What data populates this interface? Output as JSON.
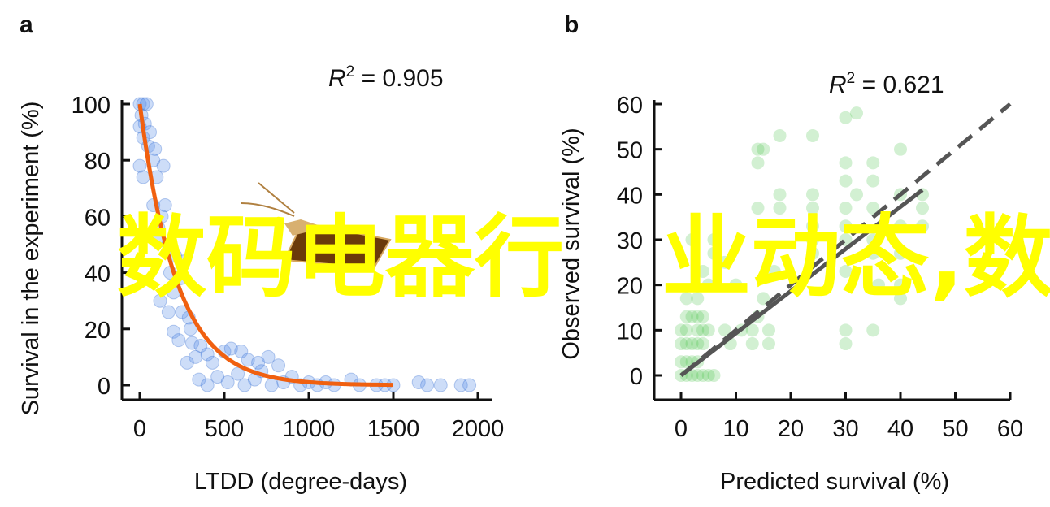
{
  "overlay_text": "数码电器行业动态,数",
  "chart_data": [
    {
      "panel": "a",
      "type": "scatter",
      "xlabel": "LTDD (degree-days)",
      "ylabel": "Survival in the experiment (%)",
      "xlim": [
        0,
        2000
      ],
      "ylim": [
        0,
        100
      ],
      "xticks": [
        "0",
        "500",
        "1000",
        "1500",
        "2000"
      ],
      "yticks": [
        "0",
        "20",
        "40",
        "60",
        "80",
        "100"
      ],
      "annotation": {
        "prefix": "R",
        "sup": "2",
        "text": " = 0.905"
      },
      "point_color": "#5b8fe8",
      "fit_color": "#f06010",
      "fit": {
        "model": "exponential",
        "a": 100,
        "k": 220,
        "xmax": 1500
      },
      "points": [
        [
          0,
          100
        ],
        [
          20,
          100
        ],
        [
          40,
          100
        ],
        [
          10,
          96
        ],
        [
          30,
          93
        ],
        [
          0,
          92
        ],
        [
          20,
          88
        ],
        [
          60,
          90
        ],
        [
          50,
          85
        ],
        [
          90,
          84
        ],
        [
          80,
          80
        ],
        [
          0,
          78
        ],
        [
          140,
          78
        ],
        [
          20,
          74
        ],
        [
          100,
          74
        ],
        [
          80,
          64
        ],
        [
          150,
          64
        ],
        [
          130,
          60
        ],
        [
          110,
          56
        ],
        [
          100,
          52
        ],
        [
          170,
          50
        ],
        [
          210,
          46
        ],
        [
          260,
          44
        ],
        [
          180,
          40
        ],
        [
          240,
          38
        ],
        [
          200,
          33
        ],
        [
          120,
          30
        ],
        [
          170,
          26
        ],
        [
          250,
          26
        ],
        [
          290,
          24
        ],
        [
          300,
          20
        ],
        [
          200,
          19
        ],
        [
          230,
          16
        ],
        [
          310,
          15
        ],
        [
          360,
          14
        ],
        [
          330,
          10
        ],
        [
          280,
          8
        ],
        [
          400,
          11
        ],
        [
          430,
          8
        ],
        [
          500,
          12
        ],
        [
          540,
          13
        ],
        [
          600,
          12
        ],
        [
          640,
          9
        ],
        [
          700,
          8
        ],
        [
          760,
          10
        ],
        [
          820,
          7
        ],
        [
          350,
          2
        ],
        [
          400,
          0
        ],
        [
          460,
          3
        ],
        [
          520,
          1
        ],
        [
          580,
          4
        ],
        [
          620,
          0
        ],
        [
          680,
          2
        ],
        [
          720,
          5
        ],
        [
          780,
          0
        ],
        [
          850,
          1
        ],
        [
          900,
          3
        ],
        [
          950,
          0
        ],
        [
          1000,
          1
        ],
        [
          1050,
          0
        ],
        [
          1100,
          1
        ],
        [
          1150,
          0
        ],
        [
          1250,
          2
        ],
        [
          1300,
          0
        ],
        [
          1400,
          0
        ],
        [
          1450,
          0
        ],
        [
          1500,
          0
        ],
        [
          1650,
          1
        ],
        [
          1700,
          0
        ],
        [
          1780,
          0
        ],
        [
          1900,
          0
        ],
        [
          1950,
          0
        ]
      ]
    },
    {
      "panel": "b",
      "type": "scatter",
      "xlabel": "Predicted survival (%)",
      "ylabel": "Observed survival (%)",
      "xlim": [
        0,
        60
      ],
      "ylim": [
        0,
        60
      ],
      "xticks": [
        "0",
        "10",
        "20",
        "30",
        "40",
        "50",
        "60"
      ],
      "yticks": [
        "0",
        "10",
        "20",
        "30",
        "40",
        "50",
        "60"
      ],
      "annotation": {
        "prefix": "R",
        "sup": "2",
        "text": " = 0.621"
      },
      "point_color": "#33bb33",
      "fit_color": "#555555",
      "fit": {
        "model": "linear",
        "from": [
          0,
          0
        ],
        "to": [
          44,
          41
        ]
      },
      "reference_line": {
        "from": [
          0,
          0
        ],
        "to": [
          60,
          60
        ],
        "style": "dashed"
      },
      "points": [
        [
          0,
          0
        ],
        [
          1,
          0
        ],
        [
          2,
          0
        ],
        [
          3,
          0
        ],
        [
          4,
          0
        ],
        [
          5,
          0
        ],
        [
          6,
          0
        ],
        [
          0,
          3
        ],
        [
          1,
          3
        ],
        [
          2,
          3
        ],
        [
          3,
          3
        ],
        [
          0,
          7
        ],
        [
          1,
          7
        ],
        [
          2,
          7
        ],
        [
          3,
          7
        ],
        [
          4,
          7
        ],
        [
          0,
          10
        ],
        [
          1,
          10
        ],
        [
          3,
          10
        ],
        [
          4,
          10
        ],
        [
          5,
          10
        ],
        [
          1,
          13
        ],
        [
          2,
          13
        ],
        [
          3,
          13
        ],
        [
          4,
          13
        ],
        [
          1,
          17
        ],
        [
          3,
          17
        ],
        [
          5,
          20
        ],
        [
          4,
          23
        ],
        [
          6,
          27
        ],
        [
          2,
          30
        ],
        [
          6,
          30
        ],
        [
          8,
          10
        ],
        [
          9,
          7
        ],
        [
          8,
          25
        ],
        [
          10,
          20
        ],
        [
          11,
          10
        ],
        [
          13,
          10
        ],
        [
          14,
          13
        ],
        [
          15,
          17
        ],
        [
          13,
          7
        ],
        [
          16,
          7
        ],
        [
          16,
          10
        ],
        [
          17,
          23
        ],
        [
          14,
          47
        ],
        [
          15,
          50
        ],
        [
          14,
          50
        ],
        [
          18,
          53
        ],
        [
          18,
          40
        ],
        [
          14,
          37
        ],
        [
          18,
          37
        ],
        [
          24,
          53
        ],
        [
          24,
          40
        ],
        [
          24,
          37
        ],
        [
          24,
          33
        ],
        [
          24,
          30
        ],
        [
          24,
          27
        ],
        [
          30,
          57
        ],
        [
          32,
          58
        ],
        [
          30,
          47
        ],
        [
          30,
          43
        ],
        [
          32,
          40
        ],
        [
          30,
          37
        ],
        [
          30,
          33
        ],
        [
          30,
          30
        ],
        [
          30,
          23
        ],
        [
          30,
          10
        ],
        [
          30,
          7
        ],
        [
          35,
          47
        ],
        [
          35,
          43
        ],
        [
          35,
          37
        ],
        [
          35,
          30
        ],
        [
          35,
          27
        ],
        [
          36,
          20
        ],
        [
          35,
          10
        ],
        [
          40,
          50
        ],
        [
          40,
          40
        ],
        [
          40,
          33
        ],
        [
          40,
          27
        ],
        [
          40,
          20
        ],
        [
          40,
          17
        ],
        [
          44,
          40
        ],
        [
          44,
          37
        ],
        [
          44,
          33
        ]
      ]
    }
  ]
}
